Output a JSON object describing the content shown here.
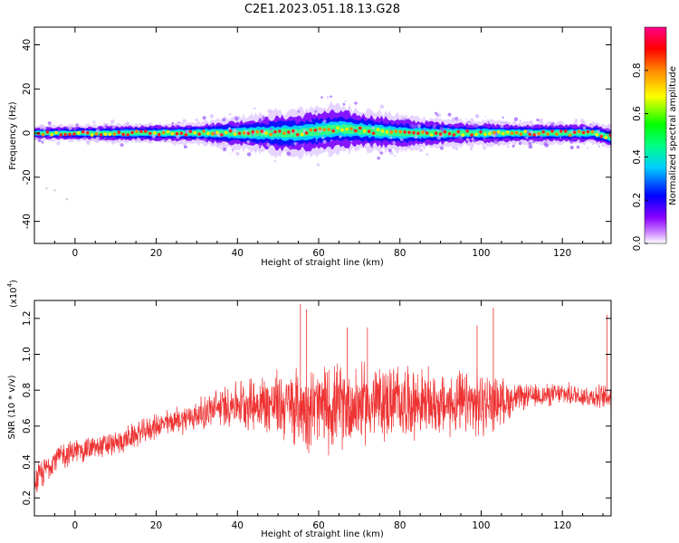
{
  "title": "C2E1.2023.051.18.13.G28",
  "chart_data": [
    {
      "type": "heatmap",
      "title": "C2E1.2023.051.18.13.G28",
      "xlabel": "Height of straight line (km)",
      "ylabel": "Frequency (Hz)",
      "xlim": [
        -10,
        132
      ],
      "ylim": [
        -50,
        48
      ],
      "x_ticks": [
        "0",
        "20",
        "40",
        "60",
        "80",
        "100",
        "120"
      ],
      "y_ticks": [
        "40",
        "20",
        "0",
        "-20",
        "-40"
      ],
      "colorbar": {
        "label": "Normalized spectral amplitude",
        "range": [
          0,
          1
        ],
        "ticks": [
          "0.0",
          "0.2",
          "0.4",
          "0.6",
          "0.8"
        ],
        "colormap": [
          "#ffffff",
          "#8800ff",
          "#0000ff",
          "#00ffff",
          "#00ff00",
          "#ffff00",
          "#ff8800",
          "#ff0000",
          "#ff0088"
        ]
      },
      "description_band": {
        "center_frequency_hz": [
          [
            -10,
            0
          ],
          [
            0,
            0
          ],
          [
            20,
            0
          ],
          [
            40,
            0
          ],
          [
            55,
            0
          ],
          [
            65,
            2
          ],
          [
            80,
            0
          ],
          [
            100,
            0
          ],
          [
            120,
            0
          ],
          [
            128,
            0
          ],
          [
            132,
            -2
          ]
        ],
        "half_width_hz": [
          [
            -10,
            2
          ],
          [
            30,
            3
          ],
          [
            50,
            6
          ],
          [
            60,
            7
          ],
          [
            70,
            6
          ],
          [
            90,
            4
          ],
          [
            110,
            3
          ],
          [
            132,
            3
          ]
        ]
      },
      "grid": false
    },
    {
      "type": "line",
      "xlabel": "Height of straight line (km)",
      "ylabel": "SNR (10 * v/v)",
      "y_scale_label": "(x10",
      "y_scale_exponent": "4",
      "xlim": [
        -10,
        132
      ],
      "ylim": [
        0.1,
        1.3
      ],
      "x_ticks": [
        "0",
        "20",
        "40",
        "60",
        "80",
        "100",
        "120"
      ],
      "y_ticks": [
        "0.2",
        "0.4",
        "0.6",
        "0.8",
        "1.0",
        "1.2"
      ],
      "series": [
        {
          "color": "#ee3333",
          "mean_curve": [
            [
              -10,
              0.28
            ],
            [
              -5,
              0.42
            ],
            [
              0,
              0.46
            ],
            [
              10,
              0.5
            ],
            [
              20,
              0.6
            ],
            [
              30,
              0.66
            ],
            [
              35,
              0.7
            ],
            [
              40,
              0.73
            ],
            [
              50,
              0.72
            ],
            [
              60,
              0.7
            ],
            [
              70,
              0.72
            ],
            [
              80,
              0.74
            ],
            [
              90,
              0.72
            ],
            [
              100,
              0.72
            ],
            [
              110,
              0.76
            ],
            [
              120,
              0.78
            ],
            [
              130,
              0.76
            ]
          ],
          "amplitude_curve": [
            [
              -10,
              0.1
            ],
            [
              0,
              0.08
            ],
            [
              20,
              0.08
            ],
            [
              30,
              0.1
            ],
            [
              40,
              0.15
            ],
            [
              50,
              0.22
            ],
            [
              60,
              0.28
            ],
            [
              70,
              0.26
            ],
            [
              80,
              0.24
            ],
            [
              90,
              0.2
            ],
            [
              100,
              0.22
            ],
            [
              110,
              0.08
            ],
            [
              120,
              0.07
            ],
            [
              130,
              0.08
            ]
          ],
          "peaks": [
            [
              55.5,
              1.28
            ],
            [
              57,
              1.25
            ],
            [
              67,
              1.15
            ],
            [
              72,
              1.15
            ],
            [
              103,
              1.26
            ],
            [
              99,
              1.16
            ],
            [
              131,
              1.22
            ]
          ]
        }
      ],
      "grid": false
    }
  ]
}
